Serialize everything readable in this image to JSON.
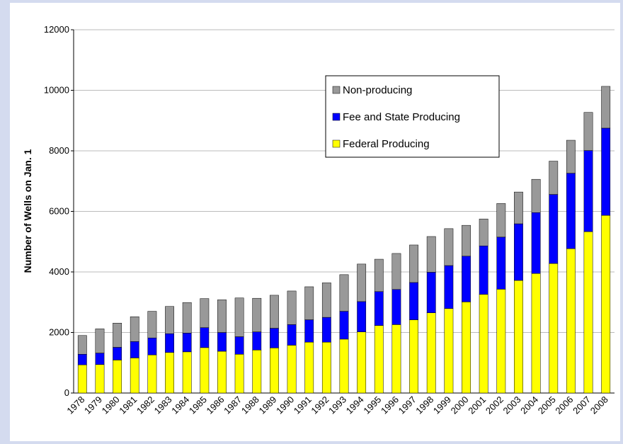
{
  "chart_data": {
    "type": "stacked_bar",
    "y_label": "Number of Wells on Jan. 1",
    "categories": [
      "1978",
      "1979",
      "1980",
      "1981",
      "1982",
      "1983",
      "1984",
      "1985",
      "1986",
      "1987",
      "1988",
      "1989",
      "1990",
      "1991",
      "1992",
      "1993",
      "1994",
      "1995",
      "1996",
      "1997",
      "1998",
      "1999",
      "2000",
      "2001",
      "2002",
      "2003",
      "2004",
      "2005",
      "2006",
      "2007",
      "2008"
    ],
    "series": [
      {
        "name": "Federal Producing",
        "color": "#ffff00",
        "values": [
          930,
          940,
          1090,
          1160,
          1260,
          1340,
          1360,
          1500,
          1380,
          1280,
          1420,
          1490,
          1580,
          1680,
          1680,
          1780,
          2020,
          2230,
          2260,
          2420,
          2650,
          2790,
          3010,
          3260,
          3430,
          3720,
          3950,
          4280,
          4770,
          5330,
          5870
        ]
      },
      {
        "name": "Fee and State Producing",
        "color": "#0000ff",
        "values": [
          350,
          380,
          420,
          540,
          560,
          620,
          620,
          660,
          620,
          580,
          600,
          650,
          680,
          740,
          820,
          920,
          1000,
          1120,
          1160,
          1230,
          1340,
          1420,
          1510,
          1600,
          1720,
          1870,
          2010,
          2280,
          2490,
          2680,
          2880
        ]
      },
      {
        "name": "Non-producing",
        "color": "#999999",
        "values": [
          620,
          800,
          800,
          820,
          880,
          900,
          1010,
          960,
          1080,
          1280,
          1110,
          1090,
          1110,
          1090,
          1140,
          1210,
          1240,
          1070,
          1190,
          1240,
          1180,
          1220,
          1020,
          890,
          1110,
          1050,
          1100,
          1100,
          1090,
          1260,
          1380
        ]
      }
    ],
    "ylim": [
      0,
      12000
    ],
    "yticks": [
      0,
      2000,
      4000,
      6000,
      8000,
      10000,
      12000
    ],
    "grid": true
  }
}
